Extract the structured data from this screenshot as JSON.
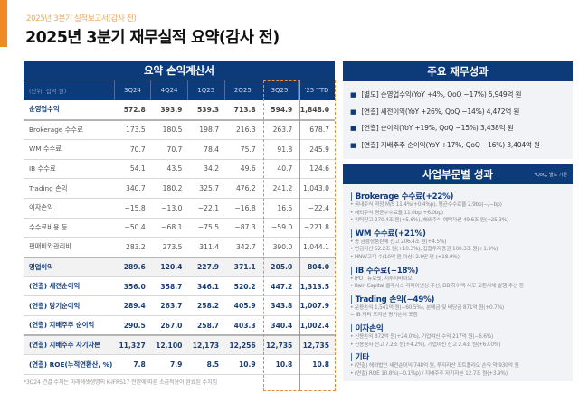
{
  "header": {
    "subtitle": "2025년 3분기 실적보고서(감사 전)",
    "title": "2025년 3분기 재무실적 요약(감사 전)",
    "accent_color": "#f08a24"
  },
  "income_statement": {
    "title": "요약 손익계산서",
    "unit_label": "(단위: 십억 원)",
    "columns": [
      "3Q24",
      "4Q24",
      "1Q25",
      "2Q25",
      "3Q25",
      "'25 YTD"
    ],
    "rows": [
      {
        "label": "순영업수익",
        "values": [
          "572.8",
          "393.9",
          "539.3",
          "713.8",
          "594.9",
          "1,848.0"
        ]
      },
      {
        "label": "Brokerage 수수료",
        "values": [
          "173.5",
          "180.5",
          "198.7",
          "216.3",
          "263.7",
          "678.7"
        ]
      },
      {
        "label": "WM 수수료",
        "values": [
          "70.7",
          "70.7",
          "78.4",
          "75.7",
          "91.8",
          "245.9"
        ]
      },
      {
        "label": "IB 수수료",
        "values": [
          "54.1",
          "43.5",
          "34.2",
          "49.6",
          "40.7",
          "124.6"
        ]
      },
      {
        "label": "Trading 손익",
        "values": [
          "340.7",
          "180.2",
          "325.7",
          "476.2",
          "241.2",
          "1,043.0"
        ]
      },
      {
        "label": "이자손익",
        "values": [
          "−15.8",
          "−13.0",
          "−22.1",
          "−16.8",
          "16.5",
          "−22.4"
        ]
      },
      {
        "label": "수수료비용 등",
        "values": [
          "−50.4",
          "−68.1",
          "−75.5",
          "−87.3",
          "−59.0",
          "−221.8"
        ]
      },
      {
        "label": "판매비와관리비",
        "values": [
          "283.2",
          "273.5",
          "311.4",
          "342.7",
          "390.0",
          "1,044.1"
        ]
      },
      {
        "label": "영업이익",
        "values": [
          "289.6",
          "120.4",
          "227.9",
          "371.1",
          "205.0",
          "804.0"
        ]
      },
      {
        "label": "(연결) 세전순이익",
        "values": [
          "356.0",
          "358.7",
          "346.1",
          "520.2",
          "447.2",
          "1,313.5"
        ]
      },
      {
        "label": "(연결) 당기순이익",
        "values": [
          "289.4",
          "263.7",
          "258.2",
          "405.9",
          "343.8",
          "1,007.9"
        ]
      },
      {
        "label": "(연결) 지배주주 순이익",
        "values": [
          "290.5",
          "267.0",
          "258.7",
          "403.3",
          "340.4",
          "1,002.4"
        ]
      },
      {
        "label": "(연결) 지배주주 자기자본",
        "values": [
          "11,327",
          "12,100",
          "12,173",
          "12,256",
          "12,735",
          "12,735"
        ]
      },
      {
        "label": "(연결) ROE(누적연환산, %)",
        "values": [
          "7.8",
          "7.9",
          "8.5",
          "10.9",
          "10.8",
          "10.8"
        ]
      }
    ],
    "footnote": "*3Q24 연결 수치는 미래에셋생명의 K-IFRS17 전환에 따른 소급적용이 완료된 수치임"
  },
  "key_financials": {
    "title": "주요 재무성과",
    "items": [
      "[별도] 순영업수익(YoY +4%, QoQ −17%) 5,949억 원",
      "[연결] 세전이익(YoY +26%, QoQ −14%) 4,472억 원",
      "[연결] 순이익(YoY +19%, QoQ −15%) 3,438억 원",
      "[연결] 지배주주 순이익(YoY +17%, QoQ −16%) 3,404억 원"
    ]
  },
  "segments": {
    "title": "사업부문별 성과",
    "note": "*QoQ, 별도 기준",
    "groups": [
      {
        "title": "Brokerage 수수료(+22%)",
        "lines": [
          "• 국내주식 약정 M/S 11.4%(+0.4%p), 평균수수료율 2.9bp(−/−bp)",
          "• 해외주식 평균수수료율 11.0bp(+6.0bp)",
          "• 위탁잔고 270.4조 원(+5.6%), 해외주식 예탁자산 49.6조 원(+25.3%)"
        ]
      },
      {
        "title": "WM 수수료(+21%)",
        "lines": [
          "• 총 금융상품판매 잔고 206.4조 원(+4.5%)",
          "• 연금자산 52.2조 원(+10.3%), 집합투자증권 100.3조 원(+1.9%)",
          "• HNW고객 수(10억 원 이상) 2.9만 명 (+18.0%)"
        ]
      },
      {
        "title": "IB 수수료(−18%)",
        "lines": [
          "• IPO : 뉴로핏, 지투지바이오",
          "• Bain Capital 클래시스 리파이낸싱 주선, DB 하이텍 사모 교환사채 발행 주선 등"
        ]
      },
      {
        "title": "Trading 손익(−49%)",
        "lines": [
          "• 운용손익 1,541억 원(−60.5%), 분배금 및 배당금 871억 원(+0.7%)",
          "  − IB 캐리 포지션 평가손익 포함"
        ]
      },
      {
        "title": "이자손익",
        "lines": [
          "• 신용손익 872억 원(+24.0%), 기업여신 수익 217억 원(−6.6%)",
          "• 신용융자 잔고 7.2조 원(+4.2%), 기업여신 잔고 2.4조 원(+67.0%)"
        ]
      },
      {
        "title": "기타",
        "lines": [
          "• (연결) 해외법인 세전순이익 748억 원, 투자자산 포트폴리오 손익 약 930억 원",
          "• (연결) ROE 10.8%(−0.1%p) / 지배주주 자기자본 12.7조 원(+3.9%)"
        ]
      }
    ]
  },
  "colors": {
    "navy": "#0d3a78",
    "orange_highlight": "#e98a3c",
    "panel_bg": "#f1f3f7"
  }
}
